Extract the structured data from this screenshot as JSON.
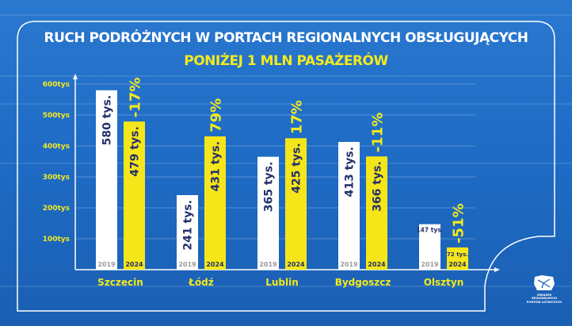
{
  "chart_data": {
    "type": "bar",
    "title": "RUCH PODRÓŻNYCH W PORTACH REGIONALNYCH OBSŁUGUJĄCYCH",
    "subtitle": "PONIŻEJ 1 MLN PASAŻERÓW",
    "categories": [
      "Szczecin",
      "Łódź",
      "Lublin",
      "Bydgoszcz",
      "Olsztyn"
    ],
    "series": [
      {
        "name": "2019",
        "values": [
          580,
          241,
          365,
          413,
          147
        ],
        "labels": [
          "580 tys.",
          "241 tys.",
          "365 tys.",
          "413 tys.",
          "147 tys."
        ],
        "color": "#ffffff"
      },
      {
        "name": "2024",
        "values": [
          479,
          431,
          425,
          366,
          72
        ],
        "labels": [
          "479 tys.",
          "431 tys.",
          "425 tys.",
          "366 tys.",
          "72 tys."
        ],
        "color": "#f5e61a"
      }
    ],
    "changes": [
      "-17%",
      "79%",
      "17%",
      "-11%",
      "-51%"
    ],
    "yticks": [
      "100tys",
      "200tys",
      "300tys",
      "400tys",
      "500tys",
      "600tys"
    ],
    "ytick_values": [
      100,
      200,
      300,
      400,
      500,
      600
    ],
    "ylim": [
      0,
      600
    ],
    "unit": "tys. pasażerów"
  },
  "logo": {
    "line1": "ZWIĄZEK REGIONALNYCH",
    "line2": "PORTÓW LOTNICZYCH"
  },
  "colors": {
    "background": "#1f6cc6",
    "accent": "#f3ea1d",
    "navy": "#23306b"
  }
}
